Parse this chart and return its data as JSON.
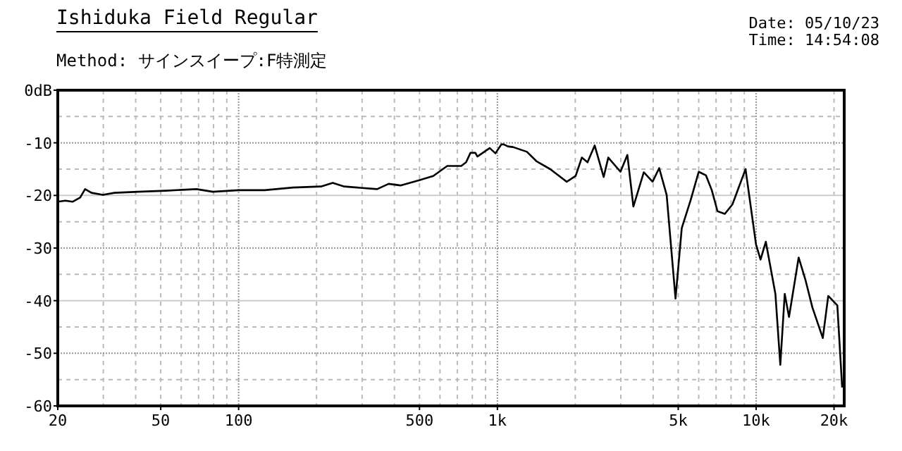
{
  "chart_data": {
    "type": "line",
    "title": "Ishiduka Field Regular",
    "annotations": [
      "Method:  サインスイープ:F特測定",
      "Date: 05/10/23",
      "Time: 14:54:08"
    ],
    "x": [
      20,
      21.4,
      22.8,
      24.4,
      25.5,
      27,
      29.9,
      33.1,
      40.8,
      52.4,
      68.7,
      79.5,
      100,
      126,
      162,
      208,
      231,
      256,
      343,
      380,
      422,
      499,
      565,
      640,
      725,
      757,
      787,
      822,
      837,
      934,
      983,
      1036,
      1058,
      1100,
      1148,
      1300,
      1416,
      1600,
      1854,
      2007,
      2120,
      2230,
      2377,
      2575,
      2683,
      2990,
      3180,
      3354,
      3680,
      3980,
      4220,
      4510,
      4880,
      5160,
      5590,
      6000,
      6400,
      6740,
      7090,
      7570,
      8100,
      9100,
      9990,
      10400,
      10900,
      11870,
      12400,
      12900,
      13400,
      14600,
      15500,
      16500,
      18100,
      19000,
      20600,
      21500
    ],
    "series": [
      {
        "color": "#000000",
        "values": [
          -21.2,
          -21.0,
          -21.2,
          -20.4,
          -18.8,
          -19.5,
          -19.9,
          -19.5,
          -19.3,
          -19.1,
          -18.8,
          -19.3,
          -19.0,
          -19.0,
          -18.5,
          -18.3,
          -17.6,
          -18.3,
          -18.8,
          -17.8,
          -18.1,
          -17.1,
          -16.3,
          -14.4,
          -14.4,
          -13.7,
          -11.9,
          -11.9,
          -12.6,
          -11.0,
          -12.0,
          -10.3,
          -10.3,
          -10.7,
          -10.8,
          -11.7,
          -13.5,
          -15.0,
          -17.4,
          -16.3,
          -12.8,
          -13.7,
          -10.5,
          -16.5,
          -12.8,
          -15.5,
          -12.3,
          -22.1,
          -15.6,
          -17.4,
          -14.8,
          -19.9,
          -39.6,
          -26.2,
          -20.8,
          -15.5,
          -16.2,
          -19.0,
          -23.0,
          -23.5,
          -21.7,
          -15.0,
          -29.3,
          -32.2,
          -28.8,
          -38.7,
          -52.2,
          -38.7,
          -43.1,
          -31.8,
          -36.0,
          -41.3,
          -47.1,
          -39.1,
          -40.9,
          -56.5
        ]
      }
    ],
    "log": "x",
    "xlim": [
      20,
      21900
    ],
    "xticks": [
      20,
      50,
      100,
      500,
      {
        "value": 1000,
        "label": "1k"
      },
      {
        "value": 5000,
        "label": "5k"
      },
      {
        "value": 10000,
        "label": "10k"
      },
      {
        "value": 20000,
        "label": "20k"
      }
    ],
    "ylim": [
      -60,
      0
    ],
    "yticks": [
      {
        "value": 0,
        "label": "0dB"
      },
      -10,
      -20,
      -30,
      -40,
      -50,
      -60
    ],
    "grid": true,
    "line_style": "solid",
    "marker": "none"
  }
}
